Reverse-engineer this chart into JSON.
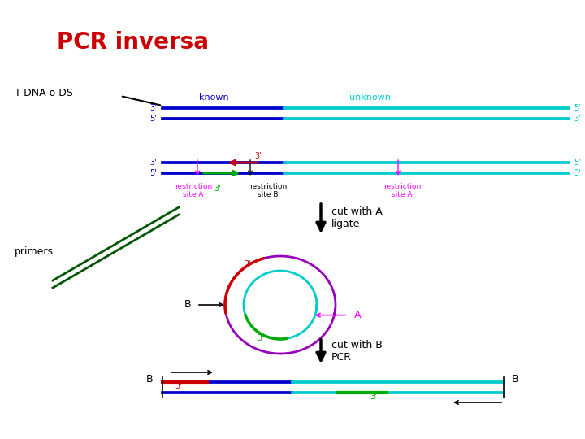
{
  "title": "PCR inversa",
  "title_color": "#cc0000",
  "title_fontsize": 20,
  "bg_color": "#ffffff",
  "label_tdna": "T-DNA o DS",
  "label_primers": "primers",
  "known_color": "#0000CC",
  "unknown_color": "#00CCCC",
  "magenta_color": "#FF00FF",
  "green_color": "#00AA00",
  "red_color": "#CC0000",
  "black_color": "#000000",
  "purple_color": "#9900BB"
}
